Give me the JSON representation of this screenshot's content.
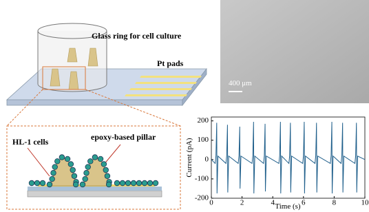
{
  "schematic": {
    "glass_ring_label": "Glass ring for cell culture",
    "pads_label": "Pt pads",
    "cells_label": "HL-1 cells",
    "pillar_label": "epoxy-based pillar"
  },
  "micrograph": {
    "scale_bar_label": "400 μm"
  },
  "chart_data": {
    "type": "line",
    "xlabel": "Time (s)",
    "ylabel": "Current (pA)",
    "color": "#1f5f8b",
    "x": [
      0,
      0.25,
      0.3,
      0.35,
      0.37,
      0.43,
      0.95,
      1.0,
      1.05,
      1.07,
      1.13,
      1.75,
      1.8,
      1.85,
      1.87,
      1.93,
      2.65,
      2.7,
      2.75,
      2.77,
      2.83,
      3.4,
      3.45,
      3.5,
      3.52,
      3.58,
      4.4,
      4.45,
      4.5,
      4.52,
      4.58,
      5.05,
      5.1,
      5.15,
      5.17,
      5.23,
      5.95,
      6.0,
      6.05,
      6.07,
      6.13,
      6.75,
      6.8,
      6.85,
      6.87,
      6.93,
      7.75,
      7.8,
      7.85,
      7.87,
      7.93,
      8.45,
      8.5,
      8.55,
      8.57,
      8.63,
      9.35,
      9.4,
      9.45,
      9.47,
      9.53,
      10
    ],
    "values": [
      0,
      -20,
      20,
      190,
      -175,
      18,
      -20,
      20,
      180,
      -170,
      18,
      -20,
      20,
      170,
      -150,
      18,
      -20,
      20,
      195,
      -175,
      18,
      -20,
      20,
      185,
      -165,
      18,
      -20,
      20,
      195,
      -175,
      18,
      -20,
      20,
      190,
      -170,
      18,
      -20,
      20,
      195,
      -175,
      18,
      -20,
      20,
      190,
      -170,
      18,
      -20,
      20,
      195,
      -175,
      18,
      -20,
      20,
      190,
      -170,
      18,
      -20,
      20,
      190,
      -170,
      18,
      0
    ],
    "xlim": [
      0,
      10
    ],
    "ylim": [
      -200,
      220
    ],
    "xticks": [
      0,
      2,
      4,
      6,
      8,
      10
    ],
    "yticks": [
      -200,
      -100,
      0,
      100,
      200
    ]
  }
}
